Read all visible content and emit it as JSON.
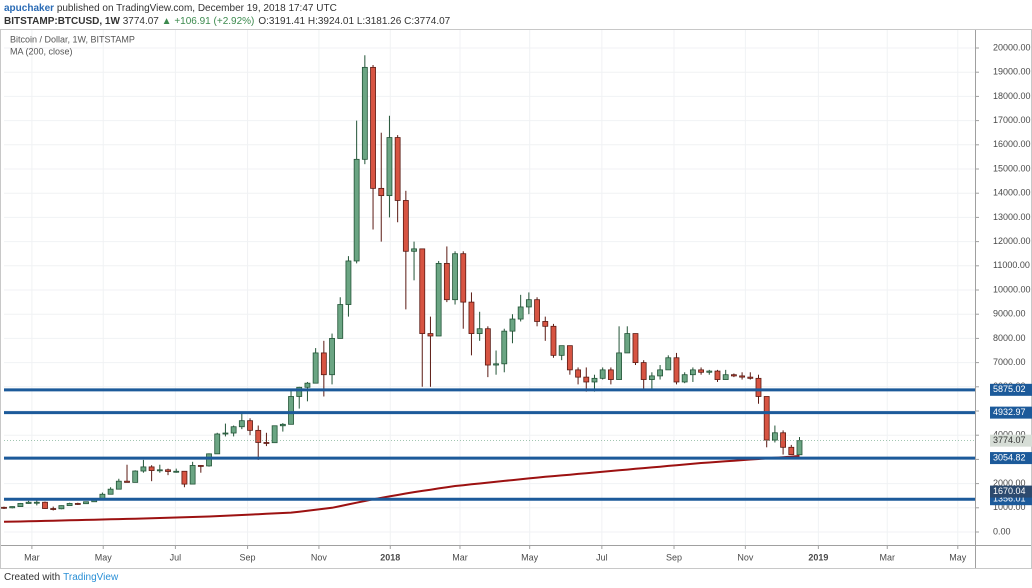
{
  "header": {
    "author": "apuchaker",
    "published": "published on TradingView.com, December 19, 2018 17:47 UTC",
    "symbol": "BITSTAMP:BTCUSD, 1W",
    "last": "3774.07",
    "change": "▲ +106.91 (+2.92%)",
    "ohlc": [
      "O:3191.41",
      "H:3924.01",
      "L:3181.26",
      "C:3774.07"
    ]
  },
  "footer": {
    "created": "Created with",
    "brand": "TradingView"
  },
  "chart_data": {
    "type": "candlestick",
    "title": "Bitcoin / Dollar, 1W, BITSTAMP",
    "up_color": "#6ba583",
    "up_border": "#225437",
    "down_color": "#d75442",
    "down_border": "#5b1a13",
    "grid": true,
    "xlim": [
      5,
      123.4
    ],
    "xticks": [
      {
        "value": 8.4,
        "label": "Mar"
      },
      {
        "value": 17.1,
        "label": "May"
      },
      {
        "value": 25.9,
        "label": "Jul"
      },
      {
        "value": 34.7,
        "label": "Sep"
      },
      {
        "value": 43.4,
        "label": "Nov"
      },
      {
        "value": 52.1,
        "label": "2018"
      },
      {
        "value": 60.6,
        "label": "Mar"
      },
      {
        "value": 69.1,
        "label": "May"
      },
      {
        "value": 77.9,
        "label": "Jul"
      },
      {
        "value": 86.7,
        "label": "Sep"
      },
      {
        "value": 95.4,
        "label": "Nov"
      },
      {
        "value": 104.3,
        "label": "2019"
      },
      {
        "value": 112.7,
        "label": "Mar"
      },
      {
        "value": 121.3,
        "label": "May"
      }
    ],
    "ylim": [
      -537,
      20744
    ],
    "yticks": [
      {
        "value": 0,
        "label": "0.00"
      },
      {
        "value": 1000,
        "label": "1000.00"
      },
      {
        "value": 2000,
        "label": "2000.00"
      },
      {
        "value": 3000,
        "label": "3000.00"
      },
      {
        "value": 4000,
        "label": "4000.00"
      },
      {
        "value": 5000,
        "label": "5000.00"
      },
      {
        "value": 6000,
        "label": "6000.00"
      },
      {
        "value": 7000,
        "label": "7000.00"
      },
      {
        "value": 8000,
        "label": "8000.00"
      },
      {
        "value": 9000,
        "label": "9000.00"
      },
      {
        "value": 10000,
        "label": "10000.00"
      },
      {
        "value": 11000,
        "label": "11000.00"
      },
      {
        "value": 12000,
        "label": "12000.00"
      },
      {
        "value": 13000,
        "label": "13000.00"
      },
      {
        "value": 14000,
        "label": "14000.00"
      },
      {
        "value": 15000,
        "label": "15000.00"
      },
      {
        "value": 16000,
        "label": "16000.00"
      },
      {
        "value": 17000,
        "label": "17000.00"
      },
      {
        "value": 18000,
        "label": "18000.00"
      },
      {
        "value": 19000,
        "label": "19000.00"
      },
      {
        "value": 20000,
        "label": "20000.00"
      }
    ],
    "x": [
      5,
      6,
      7,
      8,
      9,
      10,
      11,
      12,
      13,
      14,
      15,
      16,
      17,
      18,
      19,
      20,
      21,
      22,
      23,
      24,
      25,
      26,
      27,
      28,
      29,
      30,
      31,
      32,
      33,
      34,
      35,
      36,
      37,
      38,
      39,
      40,
      41,
      42,
      43,
      44,
      45,
      46,
      47,
      48,
      49,
      50,
      51,
      52,
      53,
      54,
      55,
      56,
      57,
      58,
      59,
      60,
      61,
      62,
      63,
      64,
      65,
      66,
      67,
      68,
      69,
      70,
      71,
      72,
      73,
      74,
      75,
      76,
      77,
      78,
      79,
      80,
      81,
      82,
      83,
      84,
      85,
      86,
      87,
      88,
      89,
      90,
      91,
      92,
      93,
      94,
      95,
      96,
      97,
      98,
      99,
      100,
      101,
      102
    ],
    "open": [
      1020,
      1000,
      1050,
      1180,
      1230,
      1230,
      970,
      960,
      1090,
      1180,
      1170,
      1250,
      1350,
      1560,
      1770,
      2100,
      2050,
      2520,
      2690,
      2540,
      2570,
      2500,
      2510,
      1980,
      2750,
      2730,
      3230,
      4050,
      4090,
      4350,
      4600,
      4200,
      3700,
      3690,
      4390,
      4450,
      5600,
      5980,
      6150,
      7400,
      6500,
      8000,
      9400,
      11200,
      15400,
      19200,
      14200,
      13900,
      16300,
      13700,
      11600,
      11700,
      8200,
      8100,
      11100,
      9600,
      11500,
      9500,
      8200,
      8400,
      6900,
      6950,
      8300,
      8800,
      9300,
      9600,
      8700,
      8500,
      7300,
      7700,
      6700,
      6400,
      6200,
      6350,
      6700,
      6300,
      7400,
      8200,
      7000,
      6300,
      6450,
      6700,
      7200,
      6200,
      6500,
      6700,
      6600,
      6650,
      6300,
      6500,
      6450,
      6400,
      6350,
      5600,
      3800,
      4100,
      3500,
      3191.41
    ],
    "high": [
      1050,
      1060,
      1200,
      1290,
      1330,
      1260,
      1050,
      1100,
      1210,
      1210,
      1260,
      1360,
      1630,
      1850,
      2200,
      2780,
      2550,
      2980,
      2760,
      2780,
      2620,
      2620,
      2520,
      2900,
      2770,
      3250,
      4100,
      4480,
      4400,
      4980,
      4700,
      4400,
      4100,
      4400,
      4500,
      5870,
      6000,
      6200,
      7600,
      7900,
      8200,
      9700,
      11400,
      17000,
      19700,
      19300,
      16500,
      17200,
      16400,
      14100,
      12000,
      11700,
      8900,
      11200,
      11800,
      11600,
      11600,
      9900,
      9100,
      8500,
      7500,
      8400,
      9000,
      9800,
      9900,
      9700,
      8900,
      8600,
      7700,
      7700,
      6800,
      6800,
      6500,
      6800,
      6800,
      8500,
      8500,
      8200,
      7100,
      6600,
      6900,
      7300,
      7400,
      6600,
      6800,
      6800,
      6700,
      6700,
      6700,
      6550,
      6600,
      6600,
      6500,
      5600,
      4400,
      4200,
      3600,
      3924.01
    ],
    "low": [
      950,
      975,
      1050,
      1170,
      1100,
      960,
      890,
      940,
      1090,
      1120,
      1170,
      1240,
      1350,
      1560,
      1760,
      2050,
      2050,
      2450,
      2100,
      2450,
      2350,
      2450,
      1850,
      1980,
      2450,
      2700,
      3230,
      3950,
      3950,
      4250,
      4000,
      2980,
      3550,
      3680,
      4150,
      4450,
      5100,
      5400,
      6150,
      5600,
      6100,
      8000,
      8900,
      11100,
      15200,
      12500,
      12000,
      13000,
      12800,
      9200,
      10400,
      6000,
      6000,
      8100,
      9500,
      9400,
      8400,
      7300,
      7900,
      6400,
      6500,
      6600,
      7800,
      8700,
      9000,
      8500,
      7900,
      7200,
      7100,
      6500,
      6100,
      5800,
      5800,
      6300,
      6100,
      6300,
      7400,
      6900,
      5900,
      5900,
      6300,
      6700,
      6100,
      6150,
      6200,
      6500,
      6500,
      6200,
      6300,
      6400,
      6300,
      6300,
      5300,
      3500,
      3700,
      3200,
      3200,
      3181.26
    ],
    "close": [
      1000,
      1050,
      1180,
      1230,
      1230,
      970,
      960,
      1090,
      1180,
      1170,
      1250,
      1350,
      1560,
      1770,
      2100,
      2050,
      2520,
      2690,
      2540,
      2570,
      2500,
      2510,
      1980,
      2750,
      2730,
      3230,
      4050,
      4090,
      4350,
      4600,
      4200,
      3700,
      3690,
      4390,
      4450,
      5600,
      5980,
      6150,
      7400,
      6500,
      8000,
      9400,
      11200,
      15400,
      19200,
      14200,
      13900,
      16300,
      13700,
      11600,
      11700,
      8200,
      8100,
      11100,
      9600,
      11500,
      9500,
      8200,
      8400,
      6900,
      6950,
      8300,
      8800,
      9300,
      9600,
      8700,
      8500,
      7300,
      7700,
      6700,
      6400,
      6200,
      6350,
      6700,
      6300,
      7400,
      8200,
      7000,
      6300,
      6450,
      6700,
      7200,
      6200,
      6500,
      6700,
      6600,
      6650,
      6300,
      6500,
      6450,
      6400,
      6350,
      5600,
      3800,
      4100,
      3500,
      3200,
      3774.07
    ],
    "ma": {
      "name": "MA (200, close)",
      "color": "#9c1111",
      "values": [
        420,
        428,
        436,
        444,
        452,
        460,
        468,
        476,
        484,
        492,
        500,
        508,
        516,
        524,
        532,
        540,
        550,
        560,
        570,
        580,
        590,
        600,
        610,
        620,
        630,
        640,
        656,
        672,
        688,
        704,
        720,
        736,
        752,
        768,
        784,
        800,
        840,
        880,
        920,
        960,
        1000,
        1070,
        1140,
        1210,
        1280,
        1350,
        1410,
        1470,
        1530,
        1590,
        1650,
        1700,
        1750,
        1800,
        1850,
        1900,
        1935,
        1970,
        2005,
        2040,
        2075,
        2110,
        2145,
        2180,
        2215,
        2250,
        2280,
        2310,
        2340,
        2370,
        2400,
        2430,
        2460,
        2490,
        2520,
        2550,
        2580,
        2610,
        2640,
        2670,
        2700,
        2730,
        2760,
        2790,
        2820,
        2850,
        2874,
        2898,
        2922,
        2946,
        2970,
        2994,
        3018,
        3042,
        3066,
        3090,
        3114,
        3140
      ]
    },
    "levels": {
      "values": [
        5875.02,
        4932.97,
        3054.82,
        1356.01
      ],
      "color": "#1c5a9a"
    },
    "markers": {
      "values": [
        3774.07,
        1670.04
      ],
      "colors": [
        "#d6ddd6",
        "#2c4a6e"
      ],
      "text_colors": [
        "#333333",
        "#ffffff"
      ]
    }
  }
}
